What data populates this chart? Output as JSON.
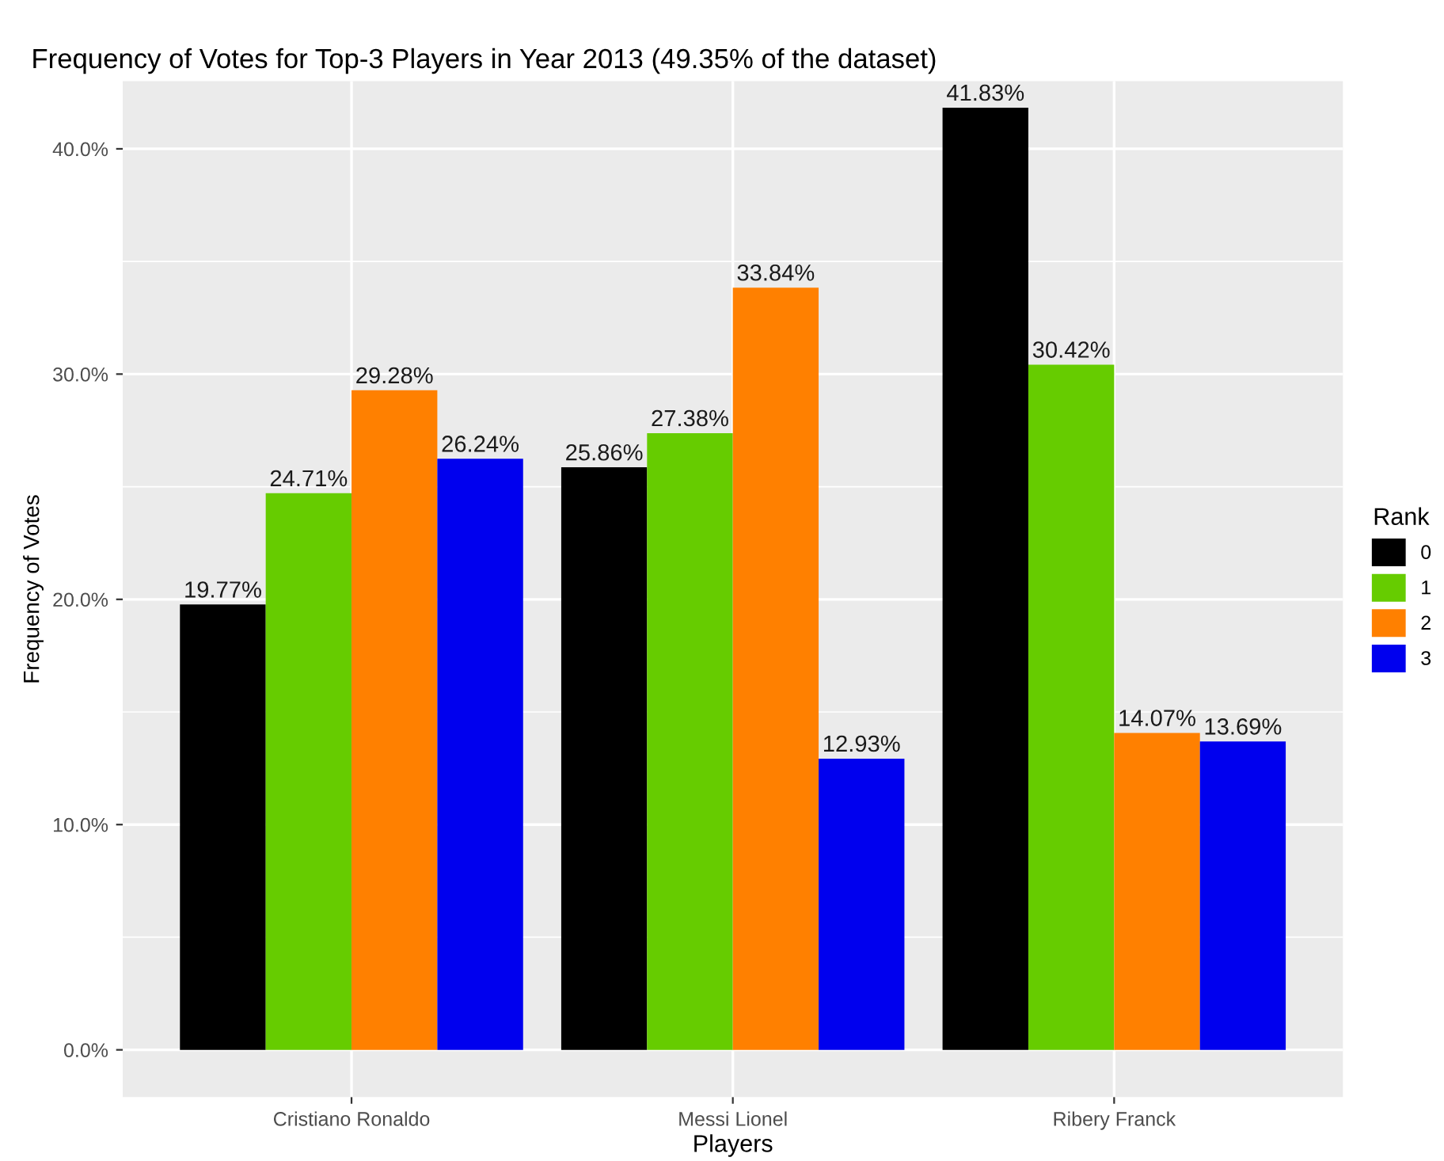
{
  "chart_data": {
    "type": "bar",
    "title": "Frequency of Votes for Top-3 Players in Year 2013 (49.35% of the dataset)",
    "xlabel": "Players",
    "ylabel": "Frequency of Votes",
    "legend_title": "Rank",
    "categories": [
      "Cristiano Ronaldo",
      "Messi Lionel",
      "Ribery Franck"
    ],
    "series": [
      {
        "name": "0",
        "color": "#000000",
        "values": [
          19.77,
          25.86,
          41.83
        ],
        "value_labels": [
          "19.77%",
          "25.86%",
          "41.83%"
        ]
      },
      {
        "name": "1",
        "color": "#66cc00",
        "values": [
          24.71,
          27.38,
          30.42
        ],
        "value_labels": [
          "24.71%",
          "27.38%",
          "30.42%"
        ]
      },
      {
        "name": "2",
        "color": "#ff8000",
        "values": [
          29.28,
          33.84,
          14.07
        ],
        "value_labels": [
          "29.28%",
          "33.84%",
          "14.07%"
        ]
      },
      {
        "name": "3",
        "color": "#0000ee",
        "values": [
          26.24,
          12.93,
          13.69
        ],
        "value_labels": [
          "26.24%",
          "12.93%",
          "13.69%"
        ]
      }
    ],
    "ylim": [
      -2.1,
      43.0
    ],
    "yticks": [
      {
        "value": 0,
        "label": "0.0%"
      },
      {
        "value": 10,
        "label": "10.0%"
      },
      {
        "value": 20,
        "label": "20.0%"
      },
      {
        "value": 30,
        "label": "30.0%"
      },
      {
        "value": 40,
        "label": "40.0%"
      }
    ],
    "grid": true,
    "legend": "right"
  }
}
